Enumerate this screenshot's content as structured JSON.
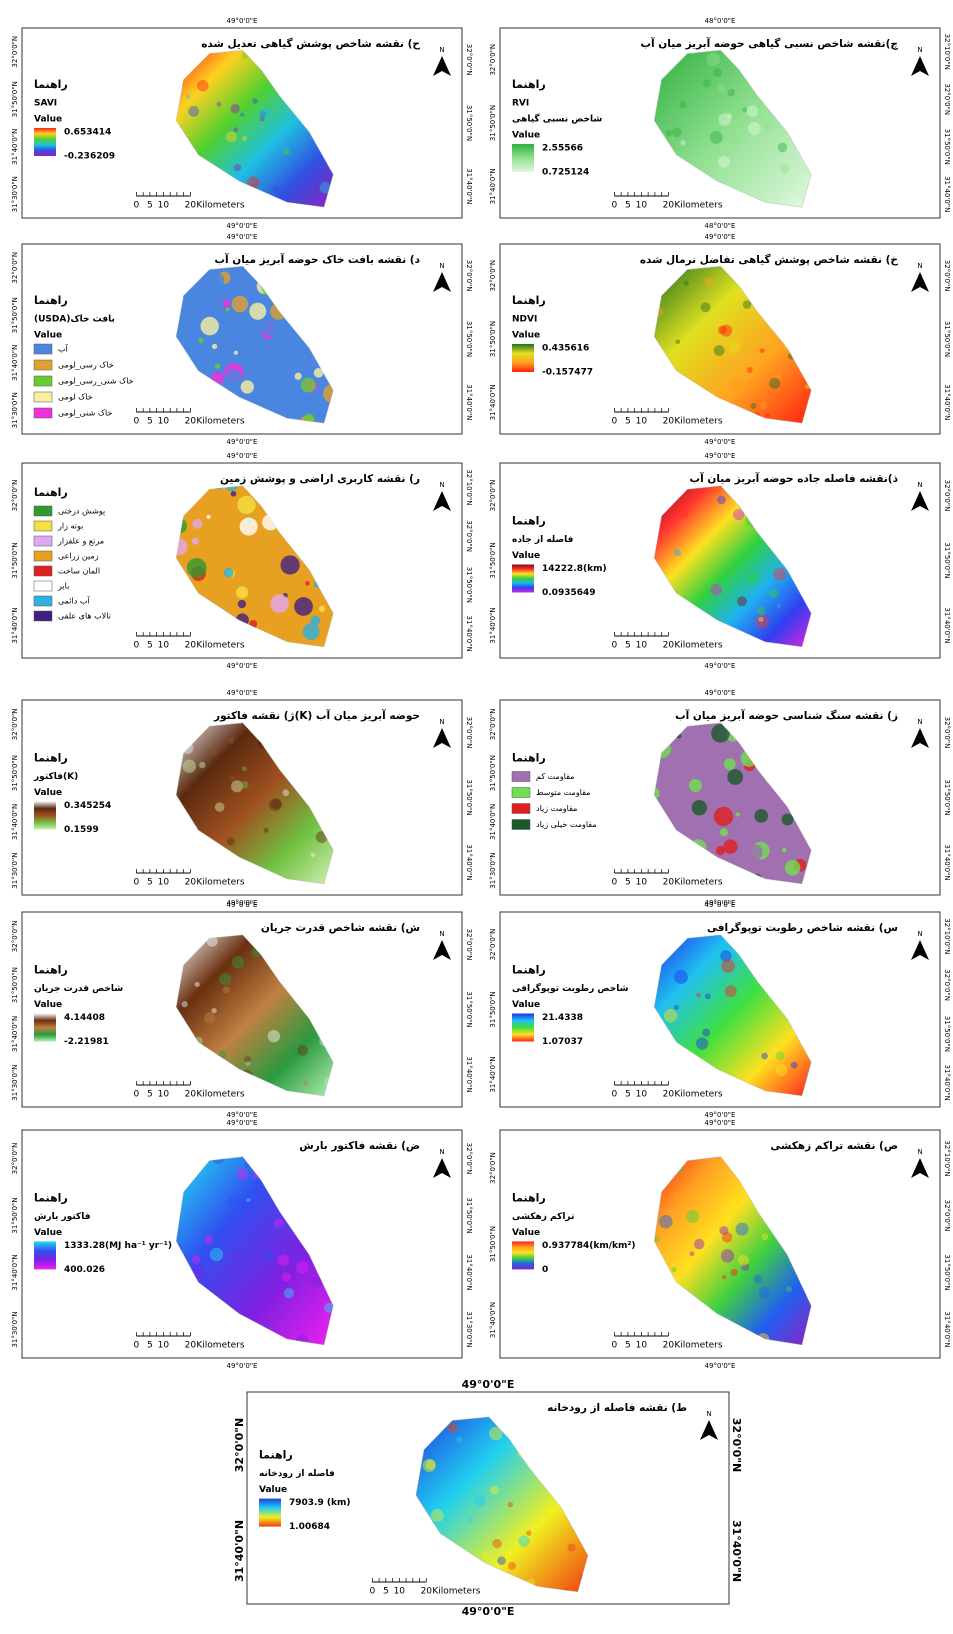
{
  "legend_heading": "راهنما",
  "value_label": "Value",
  "north": "N",
  "scale_bar": {
    "ticks": [
      "0",
      "5",
      "10",
      "20"
    ],
    "unit": "Kilometers"
  },
  "maps": [
    {
      "title": "ح) نقشه شاخص پوشش گیاهی تعدیل شده",
      "legend_field": [
        "SAVI"
      ],
      "max": "0.653414",
      "min": "-0.236209",
      "ramp": [
        "#ff2020",
        "#ffd020",
        "#50d030",
        "#20c0e0",
        "#3050e0",
        "#9020c0"
      ],
      "lon_top": "49°0'0\"E",
      "lon_bottom": "49°0'0\"E",
      "lat_left": [
        "32°0'0\"N",
        "31°50'0\"N",
        "31°40'0\"N",
        "31°30'0\"N"
      ],
      "lat_right": [
        "32°0'0\"N",
        "31°50'0\"N",
        "31°40'0\"N"
      ]
    },
    {
      "title": "چ)نقشه شاخص نسبی گیاهی حوضه آبریز میان آب",
      "legend_field": [
        "RVI",
        "شاخص نسبی گیاهی"
      ],
      "max": "2.55566",
      "min": "0.725124",
      "ramp": [
        "#30b040",
        "#90e090",
        "#e0f8e0"
      ],
      "lon_top": "48°0'0\"E",
      "lon_bottom": "48°0'0\"E",
      "lat_left": [
        "32°0'0\"N",
        "31°50'0\"N",
        "31°40'0\"N"
      ],
      "lat_right": [
        "32°10'0\"N",
        "32°0'0\"N",
        "31°50'0\"N",
        "31°40'0\"N"
      ]
    },
    {
      "title": "د) نقشه بافت خاک حوضه آبریز میان آب",
      "legend_field": [
        "(USDA)بافت خاک"
      ],
      "classes": [
        {
          "name": "آب",
          "color": "#4a86e0"
        },
        {
          "name": "خاک رسی_لومی",
          "color": "#e0a030"
        },
        {
          "name": "خاک شنی_رسی_لومی",
          "color": "#66cc33"
        },
        {
          "name": "خاک لومی",
          "color": "#f8f0a0"
        },
        {
          "name": "خاک شنی_لومی",
          "color": "#f030d8"
        }
      ],
      "lon_top": "49°0'0\"E",
      "lon_bottom": "49°0'0\"E",
      "lat_left": [
        "32°0'0\"N",
        "31°50'0\"N",
        "31°40'0\"N",
        "31°30'0\"N"
      ],
      "lat_right": [
        "32°0'0\"N",
        "31°50'0\"N",
        "31°40'0\"N"
      ]
    },
    {
      "title": "خ) نقشه شاخص پوشش گیاهی تفاضل نرمال شده",
      "legend_field": [
        "NDVI"
      ],
      "max": "0.435616",
      "min": "-0.157477",
      "ramp": [
        "#207020",
        "#e0e020",
        "#ffa020",
        "#ff2010"
      ],
      "lon_top": "49°0'0\"E",
      "lon_bottom": "49°0'0\"E",
      "lat_left": [
        "32°0'0\"N",
        "31°50'0\"N",
        "31°40'0\"N"
      ],
      "lat_right": [
        "32°0'0\"N",
        "31°50'0\"N",
        "31°40'0\"N"
      ]
    },
    {
      "title": "ر) نقشه کاربری اراضی و پوشش زمین",
      "legend_field": [],
      "classes": [
        {
          "name": "پوشش درختی",
          "color": "#2e9a30"
        },
        {
          "name": "بوته زار",
          "color": "#f5e040"
        },
        {
          "name": "مرتع و علفزار",
          "color": "#e0a8f0"
        },
        {
          "name": "زمین زراعی",
          "color": "#e8a020"
        },
        {
          "name": "المان ساخت",
          "color": "#e02020"
        },
        {
          "name": "بایر",
          "color": "#ffffff"
        },
        {
          "name": "آب دائمی",
          "color": "#30b0e0"
        },
        {
          "name": "تالاب های علفی",
          "color": "#402080"
        }
      ],
      "lon_top": "49°0'0\"E",
      "lon_bottom": "49°0'0\"E",
      "lat_left": [
        "32°0'0\"N",
        "31°50'0\"N",
        "31°40'0\"N"
      ],
      "lat_right": [
        "32°10'0\"N",
        "32°0'0\"N",
        "31°50'0\"N",
        "31°40'0\"N"
      ]
    },
    {
      "title": "ذ)نقشه فاصله جاده حوضه آبریز میان آب",
      "legend_field": [
        "فاصله از جاده"
      ],
      "max": "14222.8(km)",
      "min": "0.0935649",
      "ramp": [
        "#7a1010",
        "#ff3030",
        "#ffe020",
        "#30d040",
        "#20b0f0",
        "#3040f0",
        "#e020e0"
      ],
      "lon_top": "49°0'0\"E",
      "lon_bottom": "49°0'0\"E",
      "lat_left": [
        "32°0'0\"N",
        "31°50'0\"N",
        "31°40'0\"N"
      ],
      "lat_right": [
        "32°0'0\"N",
        "31°50'0\"N",
        "31°40'0\"N"
      ]
    },
    {
      "title": "ژ) نقشه فاکتور(K) حوضه آبریز میان آب",
      "legend_field": [
        "فاکتور(K)"
      ],
      "max": "0.345254",
      "min": "0.1599",
      "ramp": [
        "#f0f0f0",
        "#5a2a10",
        "#a05020",
        "#70c040",
        "#d0f0b0"
      ],
      "lon_top": "49°0'0\"E",
      "lon_bottom": "49°0'0\"E",
      "lat_left": [
        "32°0'0\"N",
        "31°50'0\"N",
        "31°40'0\"N",
        "31°30'0\"N"
      ],
      "lat_right": [
        "32°0'0\"N",
        "31°50'0\"N",
        "31°40'0\"N"
      ]
    },
    {
      "title": "ز) نقشه سنگ شناسی حوضه آبریز میان آب",
      "legend_field": [],
      "classes": [
        {
          "name": "مقاومت کم",
          "color": "#a070b0"
        },
        {
          "name": "مقاومت متوسط",
          "color": "#70e050"
        },
        {
          "name": "مقاومت زیاد",
          "color": "#e02020"
        },
        {
          "name": "مقاومت خیلی زیاد",
          "color": "#1a5a2a"
        }
      ],
      "lon_top": "49°0'0\"E",
      "lon_bottom": "49°0'0\"E",
      "lat_left": [
        "32°0'0\"N",
        "31°50'0\"N",
        "31°40'0\"N",
        "31°30'0\"N"
      ],
      "lat_right": [
        "32°0'0\"N",
        "31°50'0\"N",
        "31°40'0\"N"
      ]
    },
    {
      "title": "ش) نقشه شاخص قدرت جریان",
      "legend_field": [
        "شاخص قدرت جریان"
      ],
      "max": "4.14408",
      "min": "-2.21981",
      "ramp": [
        "#f8f8f8",
        "#6a3010",
        "#c08040",
        "#2a9a40",
        "#b0f0b0"
      ],
      "lon_top": "49°0'0\"E",
      "lon_bottom": "49°0'0\"E",
      "lat_left": [
        "32°0'0\"N",
        "31°50'0\"N",
        "31°40'0\"N",
        "31°30'0\"N"
      ],
      "lat_right": [
        "32°0'0\"N",
        "31°50'0\"N",
        "31°40'0\"N"
      ]
    },
    {
      "title": "س) نقشه شاخص رطوبت توپوگرافی",
      "legend_field": [
        "شاخص رطوبت توپوگرافی"
      ],
      "max": "21.4338",
      "min": "1.07037",
      "ramp": [
        "#2030f0",
        "#20c0f0",
        "#40e040",
        "#ffe020",
        "#ff2020"
      ],
      "lon_top": "49°0'0\"E",
      "lon_bottom": "49°0'0\"E",
      "lat_left": [
        "32°0'0\"N",
        "31°50'0\"N",
        "31°40'0\"N"
      ],
      "lat_right": [
        "32°10'0\"N",
        "32°0'0\"N",
        "31°50'0\"N",
        "31°40'0\"N"
      ]
    },
    {
      "title": "ض) نقشه فاکتور بارش",
      "legend_field": [
        "فاکتور بارش"
      ],
      "max": "1333.28(MJ ha⁻¹ yr⁻¹)",
      "min": "400.026",
      "ramp": [
        "#20e0f0",
        "#3050f0",
        "#8020e0",
        "#f020f0"
      ],
      "lon_top": "49°0'0\"E",
      "lon_bottom": "49°0'0\"E",
      "lat_left": [
        "32°0'0\"N",
        "31°50'0\"N",
        "31°40'0\"N",
        "31°30'0\"N"
      ],
      "lat_right": [
        "32°0'0\"N",
        "31°50'0\"N",
        "31°40'0\"N",
        "31°30'0\"N"
      ]
    },
    {
      "title": "ص) نقشه تراکم زهکشی",
      "legend_field": [
        "تراکم زهکشی"
      ],
      "max": "0.937784(km/km²)",
      "min": "0",
      "ramp": [
        "#ff2020",
        "#ffa020",
        "#ffe020",
        "#40d040",
        "#2060f0",
        "#9020c0"
      ],
      "lon_top": "49°0'0\"E",
      "lon_bottom": "49°0'0\"E",
      "lat_left": [
        "32°0'0\"N",
        "31°50'0\"N",
        "31°40'0\"N"
      ],
      "lat_right": [
        "32°10'0\"N",
        "32°0'0\"N",
        "31°50'0\"N",
        "31°40'0\"N"
      ]
    },
    {
      "title": "ط) نقشه فاصله از رودخانه",
      "legend_field": [
        "فاصله از رودخانه"
      ],
      "max": "7903.9 (km)",
      "min": "1.00684",
      "ramp": [
        "#2040e0",
        "#20d0f0",
        "#f0f020",
        "#f04010"
      ],
      "lon_top": "49°0'0\"E",
      "lon_bottom": "49°0'0\"E",
      "lat_left": [
        "32°0'0\"N",
        "31°40'0\"N"
      ],
      "lat_right": [
        "32°0'0\"N",
        "31°40'0\"N"
      ]
    }
  ]
}
